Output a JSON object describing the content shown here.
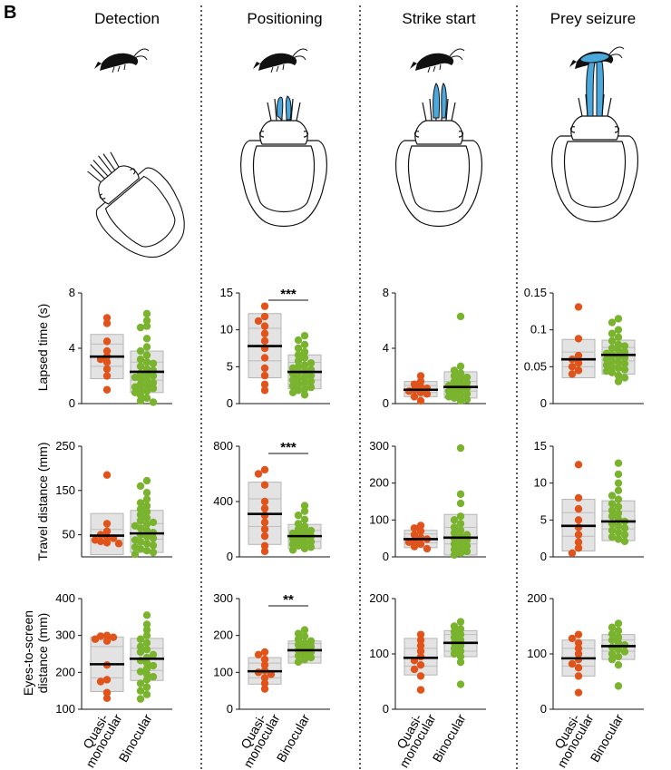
{
  "panel_label": "B",
  "columns": [
    "Detection",
    "Positioning",
    "Strike start",
    "Prey seizure"
  ],
  "x_labels": [
    [
      "Quasi-",
      "monocular"
    ],
    [
      "Binocular"
    ]
  ],
  "colors": {
    "quasi": "#e0541c",
    "binocular": "#7ab32e",
    "tentacle": "#4aa8dc",
    "box": "#e3e3e3"
  },
  "illustration_icons": [
    "shrimp-icon",
    "cuttlefish-icon"
  ],
  "chart_data": [
    {
      "type": "box-scatter",
      "id": "lapsed-detection",
      "ylabel": "Lapsed time (s)",
      "ylim": [
        0,
        8
      ],
      "yticks": [
        0,
        4,
        8
      ],
      "series": [
        {
          "name": "Quasi-monocular",
          "median": 3.4,
          "q1": 2.7,
          "q3": 4.3,
          "lo": 1.8,
          "hi": 5.0,
          "points": [
            6.2,
            5.8,
            3.8,
            3.4,
            3.0,
            2.5,
            2.0,
            1.0,
            4.5,
            3.2
          ]
        },
        {
          "name": "Binocular",
          "median": 2.3,
          "q1": 1.7,
          "q3": 3.0,
          "lo": 0.8,
          "hi": 3.8,
          "points": [
            6.5,
            6.0,
            5.6,
            5.5,
            4.7,
            4.1,
            3.8,
            3.5,
            3.2,
            3.0,
            2.9,
            2.7,
            2.5,
            2.4,
            2.2,
            2.1,
            2.0,
            1.9,
            1.8,
            1.7,
            1.5,
            1.4,
            1.3,
            1.2,
            1.1,
            1.0,
            0.9,
            0.8,
            0.6,
            0.4,
            0.2,
            0.1
          ]
        }
      ],
      "significance": ""
    },
    {
      "type": "box-scatter",
      "id": "lapsed-positioning",
      "ylabel": "",
      "ylim": [
        0,
        15
      ],
      "yticks": [
        0,
        5,
        10,
        15
      ],
      "series": [
        {
          "name": "Quasi-monocular",
          "median": 7.8,
          "q1": 5.8,
          "q3": 10.2,
          "lo": 3.5,
          "hi": 12.2,
          "points": [
            13.2,
            11.8,
            11.2,
            10.5,
            9.5,
            8.5,
            7.5,
            6.2,
            4.8,
            3.8,
            2.6,
            1.8
          ]
        },
        {
          "name": "Binocular",
          "median": 4.3,
          "q1": 3.2,
          "q3": 5.6,
          "lo": 2.0,
          "hi": 6.6,
          "points": [
            9.2,
            8.6,
            8.0,
            7.5,
            7.0,
            6.6,
            6.2,
            5.8,
            5.5,
            5.2,
            5.0,
            4.8,
            4.6,
            4.4,
            4.2,
            4.0,
            3.8,
            3.6,
            3.4,
            3.2,
            3.0,
            2.8,
            2.6,
            2.4,
            2.2,
            2.0,
            1.8,
            1.5,
            1.2
          ]
        }
      ],
      "significance": "***"
    },
    {
      "type": "box-scatter",
      "id": "lapsed-strike",
      "ylabel": "",
      "ylim": [
        0,
        8
      ],
      "yticks": [
        0,
        4,
        8
      ],
      "series": [
        {
          "name": "Quasi-monocular",
          "median": 1.0,
          "q1": 0.8,
          "q3": 1.3,
          "lo": 0.5,
          "hi": 1.6,
          "points": [
            2.0,
            1.6,
            1.4,
            1.2,
            1.1,
            1.0,
            0.9,
            0.8,
            0.7,
            0.5,
            0.2
          ]
        },
        {
          "name": "Binocular",
          "median": 1.2,
          "q1": 0.9,
          "q3": 1.6,
          "lo": 0.4,
          "hi": 2.3,
          "points": [
            6.3,
            2.7,
            2.4,
            2.2,
            2.0,
            1.9,
            1.8,
            1.6,
            1.5,
            1.4,
            1.3,
            1.2,
            1.1,
            1.0,
            0.9,
            0.8,
            0.7,
            0.6,
            0.5,
            0.4,
            0.3,
            0.2
          ]
        }
      ],
      "significance": ""
    },
    {
      "type": "box-scatter",
      "id": "lapsed-seizure",
      "ylabel": "",
      "ylim": [
        0,
        0.15
      ],
      "yticks": [
        0,
        0.05,
        0.1,
        0.15
      ],
      "series": [
        {
          "name": "Quasi-monocular",
          "median": 0.06,
          "q1": 0.05,
          "q3": 0.07,
          "lo": 0.035,
          "hi": 0.087,
          "points": [
            0.131,
            0.088,
            0.065,
            0.06,
            0.055,
            0.05,
            0.045,
            0.04
          ]
        },
        {
          "name": "Binocular",
          "median": 0.066,
          "q1": 0.058,
          "q3": 0.076,
          "lo": 0.04,
          "hi": 0.086,
          "points": [
            0.115,
            0.11,
            0.1,
            0.095,
            0.09,
            0.085,
            0.08,
            0.078,
            0.075,
            0.072,
            0.07,
            0.068,
            0.066,
            0.064,
            0.062,
            0.06,
            0.058,
            0.056,
            0.054,
            0.052,
            0.05,
            0.048,
            0.046,
            0.044,
            0.042,
            0.038,
            0.035,
            0.03
          ]
        }
      ],
      "significance": ""
    },
    {
      "type": "box-scatter",
      "id": "travel-detection",
      "ylabel": "Travel distance (mm)",
      "ylim": [
        0,
        250
      ],
      "yticks": [
        50,
        150,
        250
      ],
      "ydomain": [
        0,
        250
      ],
      "series": [
        {
          "name": "Quasi-monocular",
          "median": 48,
          "q1": 38,
          "q3": 62,
          "lo": 5,
          "hi": 98,
          "points": [
            185,
            75,
            58,
            50,
            45,
            42,
            38,
            35,
            32,
            30
          ]
        },
        {
          "name": "Binocular",
          "median": 53,
          "q1": 40,
          "q3": 75,
          "lo": 10,
          "hi": 105,
          "points": [
            172,
            160,
            145,
            130,
            122,
            115,
            108,
            102,
            95,
            88,
            82,
            78,
            74,
            70,
            65,
            60,
            55,
            50,
            46,
            42,
            38,
            34,
            30,
            26,
            22,
            18,
            14,
            10,
            6
          ]
        }
      ],
      "significance": ""
    },
    {
      "type": "box-scatter",
      "id": "travel-positioning",
      "ylabel": "",
      "ylim": [
        0,
        800
      ],
      "yticks": [
        0,
        400,
        800
      ],
      "series": [
        {
          "name": "Quasi-monocular",
          "median": 310,
          "q1": 220,
          "q3": 420,
          "lo": 90,
          "hi": 540,
          "points": [
            630,
            600,
            520,
            400,
            350,
            300,
            250,
            200,
            150,
            80,
            40
          ]
        },
        {
          "name": "Binocular",
          "median": 150,
          "q1": 110,
          "q3": 190,
          "lo": 60,
          "hi": 235,
          "points": [
            370,
            330,
            300,
            270,
            240,
            220,
            200,
            190,
            180,
            170,
            160,
            150,
            140,
            130,
            120,
            110,
            100,
            90,
            80,
            70,
            60,
            50
          ]
        }
      ],
      "significance": "***"
    },
    {
      "type": "box-scatter",
      "id": "travel-strike",
      "ylabel": "",
      "ylim": [
        0,
        300
      ],
      "yticks": [
        0,
        100,
        200,
        300
      ],
      "series": [
        {
          "name": "Quasi-monocular",
          "median": 48,
          "q1": 38,
          "q3": 62,
          "lo": 25,
          "hi": 72,
          "points": [
            85,
            78,
            70,
            60,
            52,
            48,
            44,
            40,
            35,
            28,
            22
          ]
        },
        {
          "name": "Binocular",
          "median": 52,
          "q1": 35,
          "q3": 80,
          "lo": 5,
          "hi": 115,
          "points": [
            295,
            170,
            145,
            110,
            100,
            90,
            80,
            72,
            65,
            60,
            55,
            50,
            45,
            40,
            35,
            30,
            25,
            20,
            15,
            10,
            5
          ]
        }
      ],
      "significance": ""
    },
    {
      "type": "box-scatter",
      "id": "travel-seizure",
      "ylabel": "",
      "ylim": [
        0,
        15
      ],
      "yticks": [
        0,
        5,
        10,
        15
      ],
      "series": [
        {
          "name": "Quasi-monocular",
          "median": 4.2,
          "q1": 2.8,
          "q3": 6.0,
          "lo": 0.8,
          "hi": 7.8,
          "points": [
            12.5,
            8.0,
            6.5,
            5.0,
            4.0,
            3.0,
            2.0,
            1.2,
            0.5
          ]
        },
        {
          "name": "Binocular",
          "median": 4.8,
          "q1": 3.8,
          "q3": 6.2,
          "lo": 2.2,
          "hi": 7.6,
          "points": [
            12.7,
            11.2,
            10.0,
            9.0,
            8.3,
            7.8,
            7.2,
            6.8,
            6.3,
            5.9,
            5.5,
            5.1,
            4.8,
            4.5,
            4.2,
            3.9,
            3.6,
            3.3,
            3.0,
            2.7,
            2.4,
            2.1
          ]
        }
      ],
      "significance": ""
    },
    {
      "type": "box-scatter",
      "id": "eyes-detection",
      "ylabel": "Eyes-to-screen distance (mm)",
      "ylim": [
        100,
        400
      ],
      "yticks": [
        100,
        200,
        300,
        400
      ],
      "series": [
        {
          "name": "Quasi-monocular",
          "median": 222,
          "q1": 185,
          "q3": 270,
          "lo": 148,
          "hi": 296,
          "points": [
            300,
            298,
            295,
            290,
            285,
            220,
            180,
            175,
            145,
            130
          ]
        },
        {
          "name": "Binocular",
          "median": 237,
          "q1": 205,
          "q3": 265,
          "lo": 178,
          "hi": 292,
          "points": [
            355,
            330,
            315,
            300,
            290,
            280,
            270,
            262,
            255,
            248,
            240,
            232,
            225,
            218,
            210,
            202,
            195,
            188,
            180,
            170,
            160,
            150,
            140,
            128
          ]
        }
      ],
      "significance": ""
    },
    {
      "type": "box-scatter",
      "id": "eyes-positioning",
      "ylabel": "",
      "ylim": [
        0,
        300
      ],
      "yticks": [
        0,
        100,
        200,
        300
      ],
      "series": [
        {
          "name": "Quasi-monocular",
          "median": 103,
          "q1": 85,
          "q3": 125,
          "lo": 68,
          "hi": 140,
          "points": [
            155,
            148,
            135,
            120,
            105,
            100,
            95,
            85,
            70,
            55
          ]
        },
        {
          "name": "Binocular",
          "median": 160,
          "q1": 142,
          "q3": 178,
          "lo": 125,
          "hi": 185,
          "points": [
            215,
            205,
            198,
            190,
            185,
            180,
            175,
            170,
            165,
            160,
            155,
            150,
            145,
            140,
            135,
            128
          ]
        }
      ],
      "significance": "**"
    },
    {
      "type": "box-scatter",
      "id": "eyes-strike",
      "ylabel": "",
      "ylim": [
        0,
        200
      ],
      "yticks": [
        0,
        100,
        200
      ],
      "series": [
        {
          "name": "Quasi-monocular",
          "median": 93,
          "q1": 78,
          "q3": 110,
          "lo": 62,
          "hi": 128,
          "points": [
            135,
            125,
            115,
            105,
            95,
            88,
            80,
            72,
            60,
            35
          ]
        },
        {
          "name": "Binocular",
          "median": 120,
          "q1": 105,
          "q3": 135,
          "lo": 95,
          "hi": 142,
          "points": [
            158,
            150,
            145,
            140,
            135,
            130,
            125,
            120,
            115,
            110,
            105,
            100,
            95,
            85,
            45
          ]
        }
      ],
      "significance": ""
    },
    {
      "type": "box-scatter",
      "id": "eyes-seizure",
      "ylabel": "",
      "ylim": [
        0,
        200
      ],
      "yticks": [
        0,
        100,
        200
      ],
      "series": [
        {
          "name": "Quasi-monocular",
          "median": 92,
          "q1": 78,
          "q3": 110,
          "lo": 60,
          "hi": 125,
          "points": [
            135,
            128,
            120,
            110,
            100,
            90,
            82,
            75,
            60,
            30
          ]
        },
        {
          "name": "Binocular",
          "median": 114,
          "q1": 105,
          "q3": 125,
          "lo": 90,
          "hi": 135,
          "points": [
            155,
            148,
            142,
            136,
            130,
            125,
            120,
            116,
            112,
            108,
            104,
            100,
            95,
            90,
            80,
            42
          ]
        }
      ],
      "significance": ""
    }
  ]
}
